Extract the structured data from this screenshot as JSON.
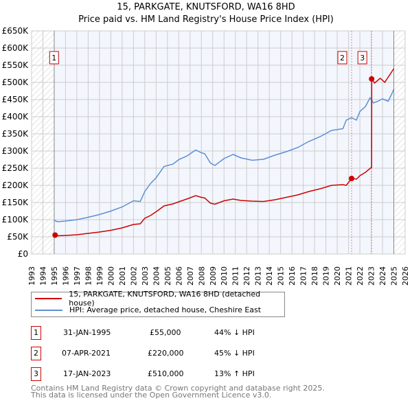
{
  "chart_data": {
    "type": "line",
    "title": [
      "15, PARKGATE, KNUTSFORD, WA16 8HD",
      "Price paid vs. HM Land Registry's House Price Index (HPI)"
    ],
    "xlim": [
      1993,
      2026
    ],
    "ylim": [
      0,
      650000
    ],
    "xticks": [
      "1993",
      "1994",
      "1995",
      "1996",
      "1997",
      "1998",
      "1999",
      "2000",
      "2001",
      "2002",
      "2003",
      "2004",
      "2005",
      "2006",
      "2007",
      "2008",
      "2009",
      "2010",
      "2011",
      "2012",
      "2013",
      "2014",
      "2015",
      "2016",
      "2017",
      "2018",
      "2019",
      "2020",
      "2021",
      "2022",
      "2023",
      "2024",
      "2025",
      "2026"
    ],
    "yticks": [
      {
        "v": 0,
        "l": "£0"
      },
      {
        "v": 50000,
        "l": "£50K"
      },
      {
        "v": 100000,
        "l": "£100K"
      },
      {
        "v": 150000,
        "l": "£150K"
      },
      {
        "v": 200000,
        "l": "£200K"
      },
      {
        "v": 250000,
        "l": "£250K"
      },
      {
        "v": 300000,
        "l": "£300K"
      },
      {
        "v": 350000,
        "l": "£350K"
      },
      {
        "v": 400000,
        "l": "£400K"
      },
      {
        "v": 450000,
        "l": "£450K"
      },
      {
        "v": 500000,
        "l": "£500K"
      },
      {
        "v": 550000,
        "l": "£550K"
      },
      {
        "v": 600000,
        "l": "£600K"
      },
      {
        "v": 650000,
        "l": "£650K"
      }
    ],
    "hatched_before": 1995.0,
    "hatched_after": 2025.0,
    "series": [
      {
        "name": "15, PARKGATE, KNUTSFORD, WA16 8HD (detached house)",
        "color": "#cc0000",
        "x": [
          1995.08,
          1995.3,
          1996,
          1997,
          1998,
          1999,
          2000,
          2001,
          2002,
          2002.6,
          2003,
          2003.5,
          2004,
          2004.7,
          2005.5,
          2006,
          2006.7,
          2007.5,
          2008,
          2008.3,
          2008.8,
          2009.2,
          2010,
          2010.8,
          2011.5,
          2012.5,
          2013.5,
          2014.5,
          2015.5,
          2016.5,
          2017.5,
          2018.5,
          2019.5,
          2020.5,
          2020.8,
          2021.27,
          2021.7,
          2022,
          2022.5,
          2023.0,
          2023.04,
          2023.05,
          2023.3,
          2023.8,
          2024.2,
          2024.5,
          2024.8,
          2025.0
        ],
        "y": [
          55000,
          53000,
          54000,
          56000,
          60000,
          64000,
          69000,
          76000,
          86000,
          88000,
          104000,
          112000,
          123000,
          140000,
          146000,
          152000,
          160000,
          170000,
          165000,
          163000,
          148000,
          145000,
          155000,
          160000,
          156000,
          154000,
          153000,
          158000,
          165000,
          172000,
          182000,
          190000,
          200000,
          202000,
          200000,
          220000,
          218000,
          228000,
          238000,
          252000,
          252000,
          510000,
          498000,
          512000,
          500000,
          515000,
          530000,
          540000
        ]
      },
      {
        "name": "HPI: Average price, detached house, Cheshire East",
        "color": "#5b8fd4",
        "x": [
          1995.0,
          1995.3,
          1996,
          1997,
          1998,
          1999,
          2000,
          2001,
          2002,
          2002.6,
          2003,
          2003.5,
          2004,
          2004.7,
          2005.5,
          2006,
          2006.7,
          2007.5,
          2008,
          2008.3,
          2008.8,
          2009.2,
          2010,
          2010.8,
          2011.5,
          2012.5,
          2013.5,
          2014.5,
          2015.5,
          2016.5,
          2017.5,
          2018.5,
          2019.5,
          2020.5,
          2020.8,
          2021.27,
          2021.7,
          2022,
          2022.5,
          2022.9,
          2023.2,
          2023.6,
          2024,
          2024.5,
          2024.8,
          2025.0
        ],
        "y": [
          98000,
          94000,
          96000,
          100000,
          107000,
          115000,
          125000,
          137000,
          155000,
          153000,
          182000,
          205000,
          222000,
          255000,
          262000,
          275000,
          285000,
          303000,
          295000,
          292000,
          265000,
          258000,
          278000,
          290000,
          280000,
          273000,
          276000,
          288000,
          298000,
          310000,
          328000,
          342000,
          360000,
          365000,
          390000,
          397000,
          390000,
          415000,
          430000,
          455000,
          440000,
          445000,
          452000,
          445000,
          465000,
          480000
        ]
      }
    ],
    "annotations": [
      {
        "label": "1",
        "x": 1995.08,
        "y": 55000
      },
      {
        "label": "2",
        "x": 2021.27,
        "y": 220000
      },
      {
        "label": "3",
        "x": 2023.04,
        "y": 510000
      }
    ]
  },
  "legend": [
    "15, PARKGATE, KNUTSFORD, WA16 8HD (detached house)",
    "HPI: Average price, detached house, Cheshire East"
  ],
  "sales": [
    {
      "n": "1",
      "date": "31-JAN-1995",
      "price": "£55,000",
      "hpi": "44% ↓ HPI"
    },
    {
      "n": "2",
      "date": "07-APR-2021",
      "price": "£220,000",
      "hpi": "45% ↓ HPI"
    },
    {
      "n": "3",
      "date": "17-JAN-2023",
      "price": "£510,000",
      "hpi": "13% ↑ HPI"
    }
  ],
  "footer": [
    "Contains HM Land Registry data © Crown copyright and database right 2025.",
    "This data is licensed under the Open Government Licence v3.0."
  ]
}
